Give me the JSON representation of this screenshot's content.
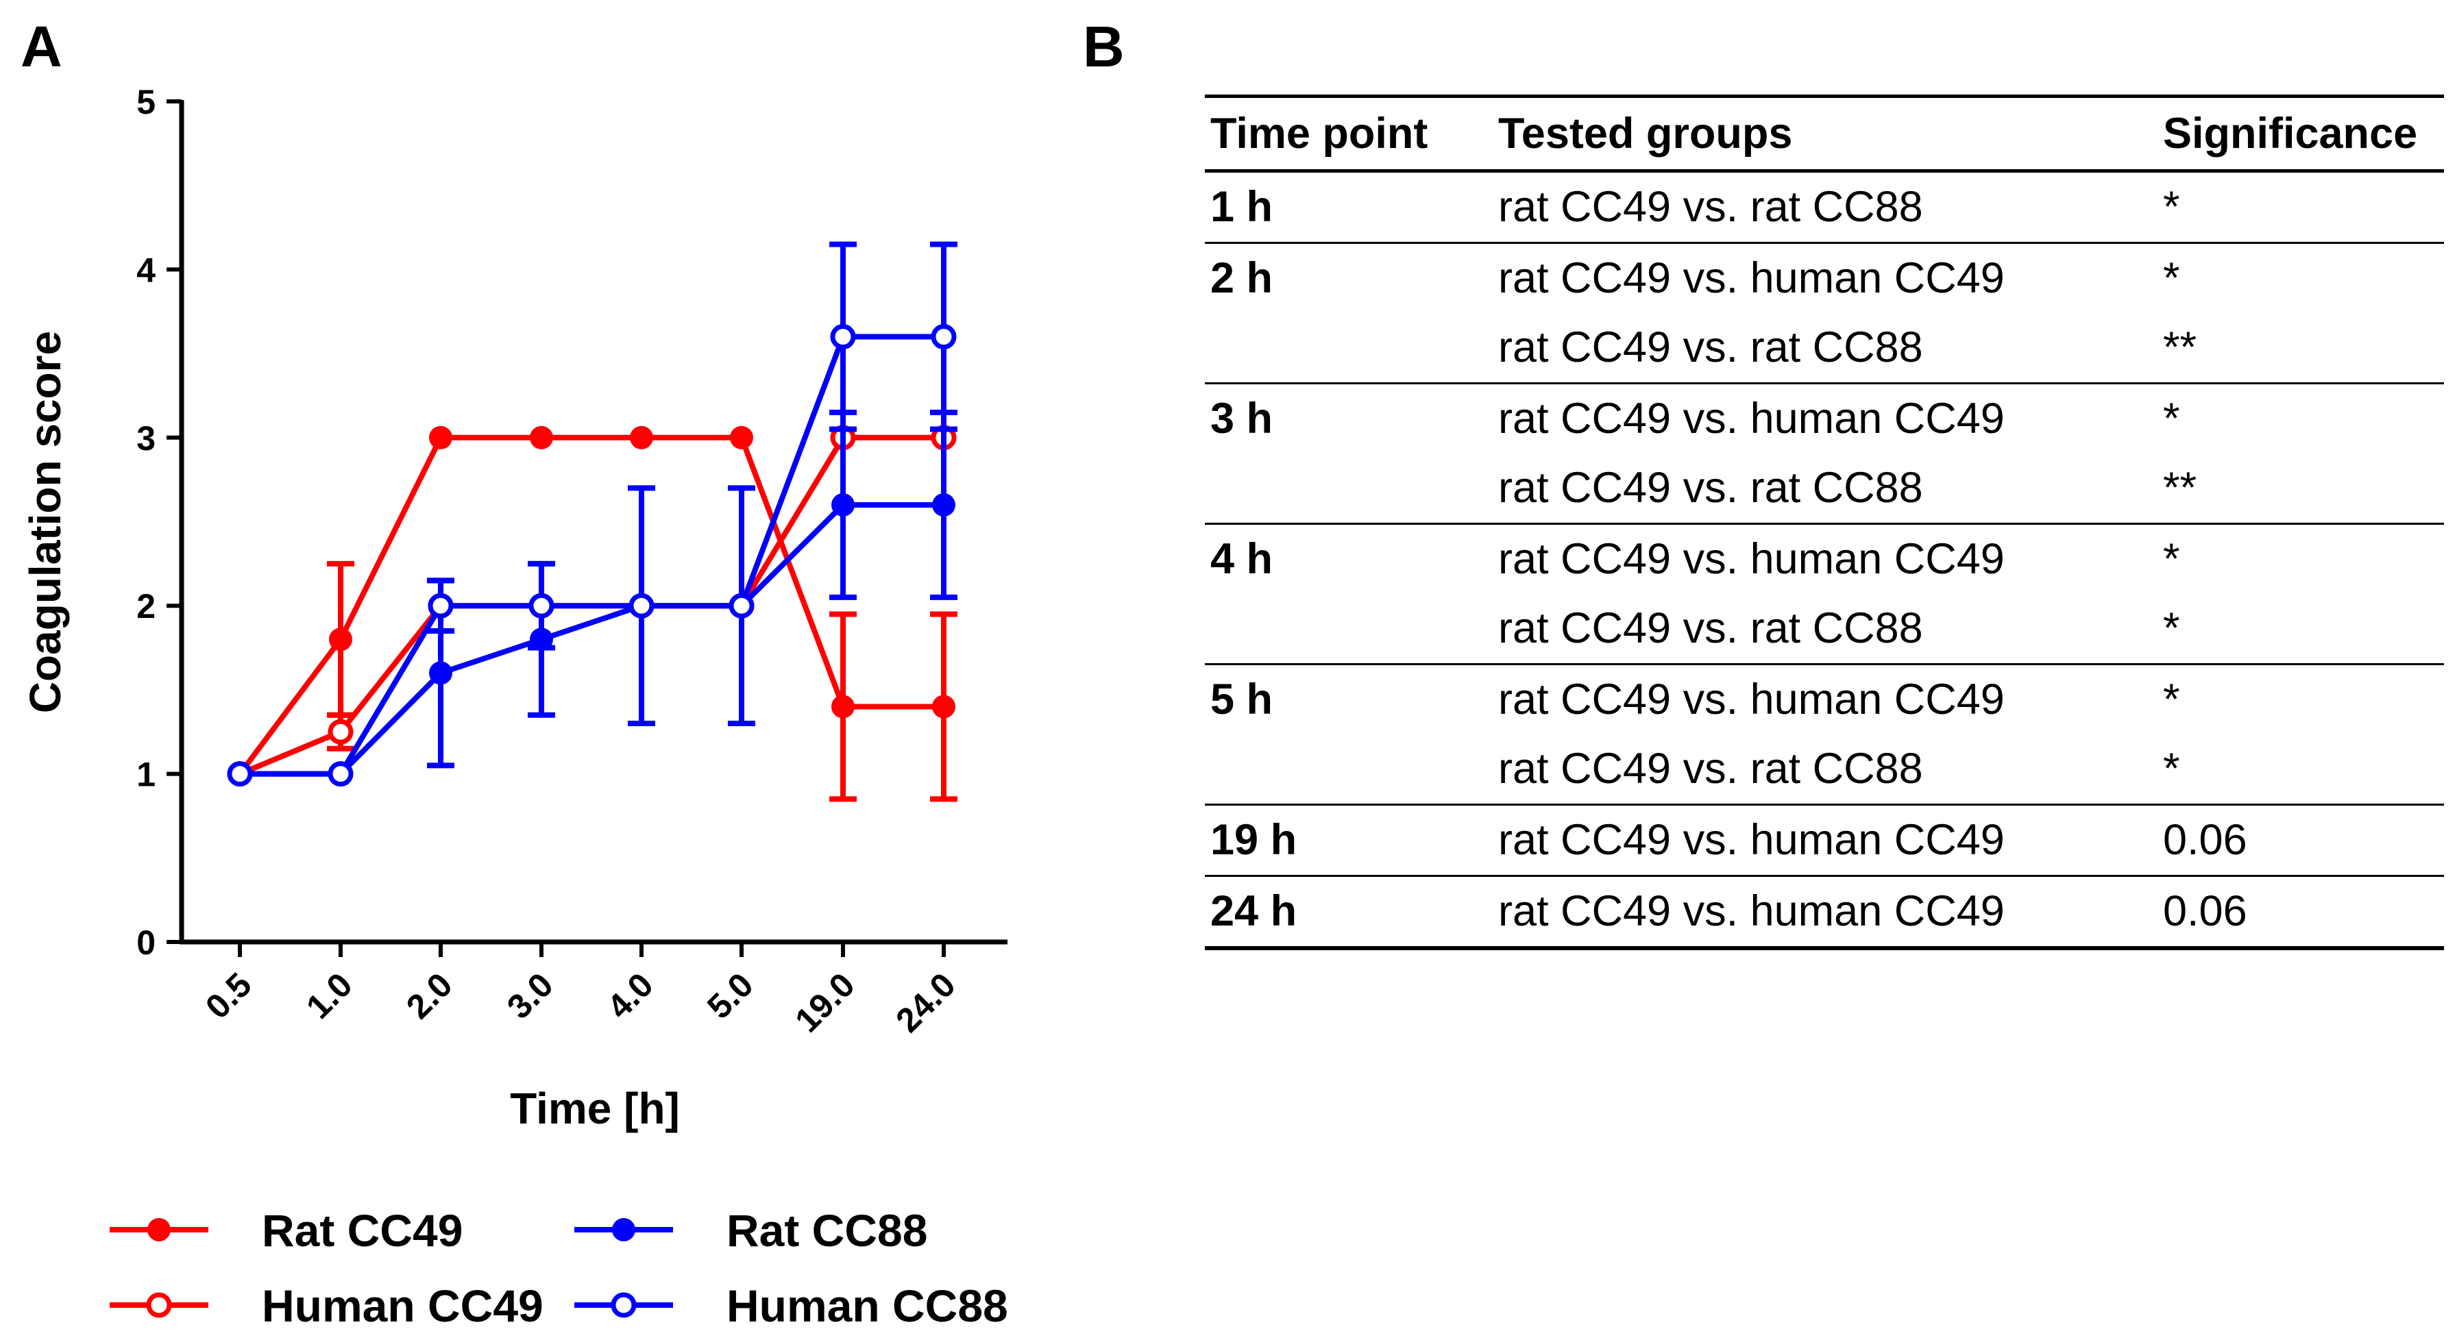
{
  "panel_labels": {
    "a": "A",
    "b": "B"
  },
  "chart_data": {
    "type": "line",
    "title": "",
    "xlabel": "Time [h]",
    "ylabel": "Coagulation score",
    "categories": [
      "0.5",
      "1.0",
      "2.0",
      "3.0",
      "4.0",
      "5.0",
      "19.0",
      "24.0"
    ],
    "yticks": [
      "0",
      "1",
      "2",
      "3",
      "4",
      "5"
    ],
    "ylim": [
      0,
      5
    ],
    "grid": false,
    "legend_position": "bottom",
    "series": [
      {
        "name": "Rat CC49",
        "color": "#ff0000",
        "marker": "filled",
        "values": [
          1.0,
          1.8,
          3.0,
          3.0,
          3.0,
          3.0,
          1.4,
          1.4
        ],
        "errors": [
          0,
          0.45,
          0,
          0,
          0,
          0,
          0.55,
          0.55
        ]
      },
      {
        "name": "Human CC49",
        "color": "#ff0000",
        "marker": "open",
        "values": [
          1.0,
          1.25,
          2.0,
          2.0,
          2.0,
          2.0,
          3.0,
          3.0
        ],
        "errors": [
          0,
          0.1,
          0,
          0,
          0,
          0,
          0,
          0
        ]
      },
      {
        "name": "Rat CC88",
        "color": "#0000ff",
        "marker": "filled",
        "values": [
          1.0,
          1.0,
          1.6,
          1.8,
          2.0,
          2.0,
          2.6,
          2.6
        ],
        "errors": [
          0,
          0,
          0.55,
          0.45,
          0.7,
          0.7,
          0.55,
          0.55
        ]
      },
      {
        "name": "Human CC88",
        "color": "#0000ff",
        "marker": "open",
        "values": [
          1.0,
          1.0,
          2.0,
          2.0,
          2.0,
          2.0,
          3.6,
          3.6
        ],
        "errors": [
          0,
          0,
          0.15,
          0.25,
          0,
          0,
          0.55,
          0.55
        ]
      }
    ]
  },
  "table": {
    "headers": [
      "Time point",
      "Tested groups",
      "Significance"
    ],
    "groups": [
      {
        "time": "1 h",
        "rows": [
          {
            "groups": "rat CC49 vs. rat CC88",
            "significance": "*"
          }
        ]
      },
      {
        "time": "2 h",
        "rows": [
          {
            "groups": "rat CC49 vs. human CC49",
            "significance": "*"
          },
          {
            "groups": "rat CC49 vs. rat CC88",
            "significance": "**"
          }
        ]
      },
      {
        "time": "3 h",
        "rows": [
          {
            "groups": "rat CC49 vs. human CC49",
            "significance": "*"
          },
          {
            "groups": "rat CC49 vs. rat CC88",
            "significance": "**"
          }
        ]
      },
      {
        "time": "4 h",
        "rows": [
          {
            "groups": "rat CC49 vs. human CC49",
            "significance": "*"
          },
          {
            "groups": "rat CC49 vs. rat CC88",
            "significance": "*"
          }
        ]
      },
      {
        "time": "5 h",
        "rows": [
          {
            "groups": "rat CC49 vs. human CC49",
            "significance": "*"
          },
          {
            "groups": "rat CC49 vs. rat CC88",
            "significance": "*"
          }
        ]
      },
      {
        "time": "19 h",
        "rows": [
          {
            "groups": "rat CC49 vs. human CC49",
            "significance": "0.06"
          }
        ]
      },
      {
        "time": "24 h",
        "rows": [
          {
            "groups": "rat CC49 vs. human CC49",
            "significance": "0.06"
          }
        ]
      }
    ]
  }
}
